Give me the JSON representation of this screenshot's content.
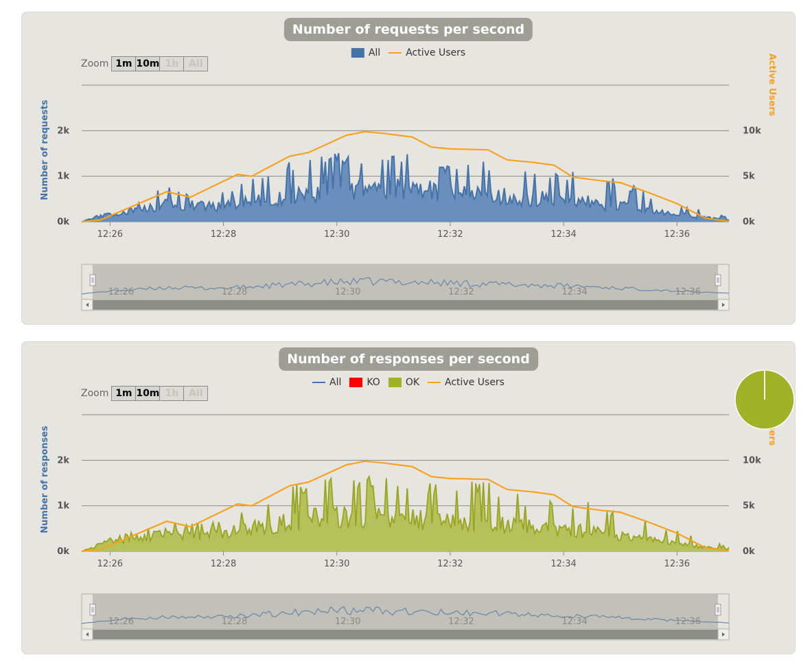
{
  "colors": {
    "all_requests": "#4572a7",
    "all_requests_fill": "#6a8fbd",
    "ko": "#ff0000",
    "ok": "#a0b228",
    "ok_fill": "#b5c25b",
    "active_users": "#f7a21f"
  },
  "zoom": {
    "label": "Zoom",
    "buttons": [
      "1m",
      "10m",
      "1h",
      "All"
    ],
    "disabled": [
      false,
      false,
      true,
      true
    ]
  },
  "charts": [
    {
      "title": "Number of requests per second",
      "legend": [
        {
          "label": "All",
          "marker": "box",
          "color": "#4572a7"
        },
        {
          "label": "Active Users",
          "marker": "line",
          "color": "#f7a21f"
        }
      ],
      "ylabel": "Number of requests",
      "y2label": "Active Users"
    },
    {
      "title": "Number of responses per second",
      "legend": [
        {
          "label": "All",
          "marker": "line",
          "color": "#4572a7"
        },
        {
          "label": "KO",
          "marker": "box",
          "color": "#ff0000"
        },
        {
          "label": "OK",
          "marker": "box",
          "color": "#a0b228"
        },
        {
          "label": "Active Users",
          "marker": "line",
          "color": "#f7a21f"
        }
      ],
      "ylabel": "Number of responses",
      "y2label": "Active Users"
    }
  ],
  "chart_data": [
    {
      "type": "area",
      "title": "Number of requests per second",
      "xlabel": "",
      "ylabel": "Number of requests",
      "y2label": "Active Users",
      "x_ticks": [
        "12:26",
        "12:28",
        "12:30",
        "12:32",
        "12:34",
        "12:36"
      ],
      "y_ticks": [
        "0k",
        "1k",
        "2k"
      ],
      "y2_ticks": [
        "0k",
        "5k",
        "10k"
      ],
      "xlim": [
        "12:25:30",
        "12:36:55"
      ],
      "ylim": [
        0,
        3000
      ],
      "y2lim": [
        0,
        15000
      ],
      "grid": true,
      "legend_position": "top-center",
      "series": [
        {
          "name": "All",
          "axis": "left",
          "x": [
            "12:25:30",
            "12:26:00",
            "12:26:30",
            "12:27:00",
            "12:27:30",
            "12:28:00",
            "12:28:30",
            "12:29:00",
            "12:29:30",
            "12:30:00",
            "12:30:30",
            "12:31:00",
            "12:31:30",
            "12:32:00",
            "12:32:30",
            "12:33:00",
            "12:33:30",
            "12:34:00",
            "12:34:30",
            "12:35:00",
            "12:35:30",
            "12:36:00",
            "12:36:30",
            "12:36:55"
          ],
          "values": [
            0,
            200,
            300,
            450,
            400,
            400,
            500,
            600,
            700,
            800,
            850,
            850,
            800,
            750,
            700,
            650,
            600,
            550,
            500,
            400,
            300,
            200,
            100,
            50
          ],
          "peaks": [
            0,
            250,
            450,
            800,
            600,
            650,
            950,
            1300,
            1450,
            1550,
            1500,
            1600,
            1450,
            1250,
            1500,
            1100,
            1250,
            1150,
            1050,
            950,
            650,
            400,
            250,
            100
          ]
        },
        {
          "name": "Active Users",
          "axis": "right",
          "x": [
            "12:25:30",
            "12:25:50",
            "12:27:00",
            "12:27:25",
            "12:28:15",
            "12:28:30",
            "12:29:10",
            "12:29:30",
            "12:30:10",
            "12:30:30",
            "12:30:50",
            "12:31:20",
            "12:31:40",
            "12:32:00",
            "12:32:40",
            "12:33:00",
            "12:33:30",
            "12:33:50",
            "12:34:10",
            "12:34:40",
            "12:35:00",
            "12:35:30",
            "12:36:00",
            "12:36:30",
            "12:36:55"
          ],
          "values": [
            0,
            200,
            3300,
            2700,
            5200,
            5000,
            7200,
            7600,
            9500,
            9900,
            9700,
            9300,
            8200,
            8000,
            7900,
            6800,
            6500,
            6200,
            4900,
            4500,
            4300,
            3200,
            2000,
            400,
            50
          ]
        }
      ]
    },
    {
      "type": "area",
      "title": "Number of responses per second",
      "xlabel": "",
      "ylabel": "Number of responses",
      "y2label": "Active Users",
      "x_ticks": [
        "12:26",
        "12:28",
        "12:30",
        "12:32",
        "12:34",
        "12:36"
      ],
      "y_ticks": [
        "0k",
        "1k",
        "2k"
      ],
      "y2_ticks": [
        "0k",
        "5k",
        "10k"
      ],
      "xlim": [
        "12:25:30",
        "12:36:55"
      ],
      "ylim": [
        0,
        3000
      ],
      "y2lim": [
        0,
        15000
      ],
      "grid": true,
      "legend_position": "top-center",
      "series": [
        {
          "name": "All",
          "axis": "left",
          "x": [
            "12:25:30",
            "12:26:00",
            "12:26:30",
            "12:27:00",
            "12:27:30",
            "12:28:00",
            "12:28:30",
            "12:29:00",
            "12:29:30",
            "12:30:00",
            "12:30:30",
            "12:31:00",
            "12:31:30",
            "12:32:00",
            "12:32:30",
            "12:33:00",
            "12:33:30",
            "12:34:00",
            "12:34:30",
            "12:35:00",
            "12:35:30",
            "12:36:00",
            "12:36:30",
            "12:36:55"
          ],
          "values": [
            0,
            250,
            350,
            450,
            450,
            450,
            600,
            700,
            800,
            900,
            900,
            850,
            800,
            750,
            700,
            650,
            600,
            550,
            500,
            400,
            300,
            200,
            100,
            50
          ],
          "peaks": [
            0,
            300,
            500,
            650,
            650,
            700,
            1000,
            1400,
            1550,
            1650,
            1700,
            1650,
            1550,
            1550,
            1650,
            1300,
            1200,
            1150,
            1100,
            900,
            700,
            450,
            300,
            100
          ]
        },
        {
          "name": "KO",
          "axis": "left",
          "values": [
            0
          ]
        },
        {
          "name": "OK",
          "axis": "left",
          "x": [
            "12:25:30",
            "12:26:00",
            "12:26:30",
            "12:27:00",
            "12:27:30",
            "12:28:00",
            "12:28:30",
            "12:29:00",
            "12:29:30",
            "12:30:00",
            "12:30:30",
            "12:31:00",
            "12:31:30",
            "12:32:00",
            "12:32:30",
            "12:33:00",
            "12:33:30",
            "12:34:00",
            "12:34:30",
            "12:35:00",
            "12:35:30",
            "12:36:00",
            "12:36:30",
            "12:36:55"
          ],
          "values": [
            0,
            250,
            350,
            450,
            450,
            450,
            600,
            700,
            800,
            900,
            900,
            850,
            800,
            750,
            700,
            650,
            600,
            550,
            500,
            400,
            300,
            200,
            100,
            50
          ]
        },
        {
          "name": "Active Users",
          "axis": "right",
          "x": [
            "12:25:30",
            "12:25:50",
            "12:27:00",
            "12:27:25",
            "12:28:15",
            "12:28:30",
            "12:29:10",
            "12:29:30",
            "12:30:10",
            "12:30:30",
            "12:30:50",
            "12:31:20",
            "12:31:40",
            "12:32:00",
            "12:32:40",
            "12:33:00",
            "12:33:30",
            "12:33:50",
            "12:34:10",
            "12:34:40",
            "12:35:00",
            "12:35:30",
            "12:36:00",
            "12:36:30",
            "12:36:55"
          ],
          "values": [
            0,
            200,
            3300,
            2700,
            5200,
            5000,
            7200,
            7600,
            9500,
            9900,
            9700,
            9300,
            8200,
            8000,
            7900,
            6800,
            6500,
            6200,
            4900,
            4500,
            4300,
            3200,
            2000,
            400,
            50
          ]
        }
      ]
    },
    {
      "type": "pie",
      "labels": [
        "OK",
        "KO"
      ],
      "values": [
        99.9,
        0.1
      ]
    }
  ]
}
